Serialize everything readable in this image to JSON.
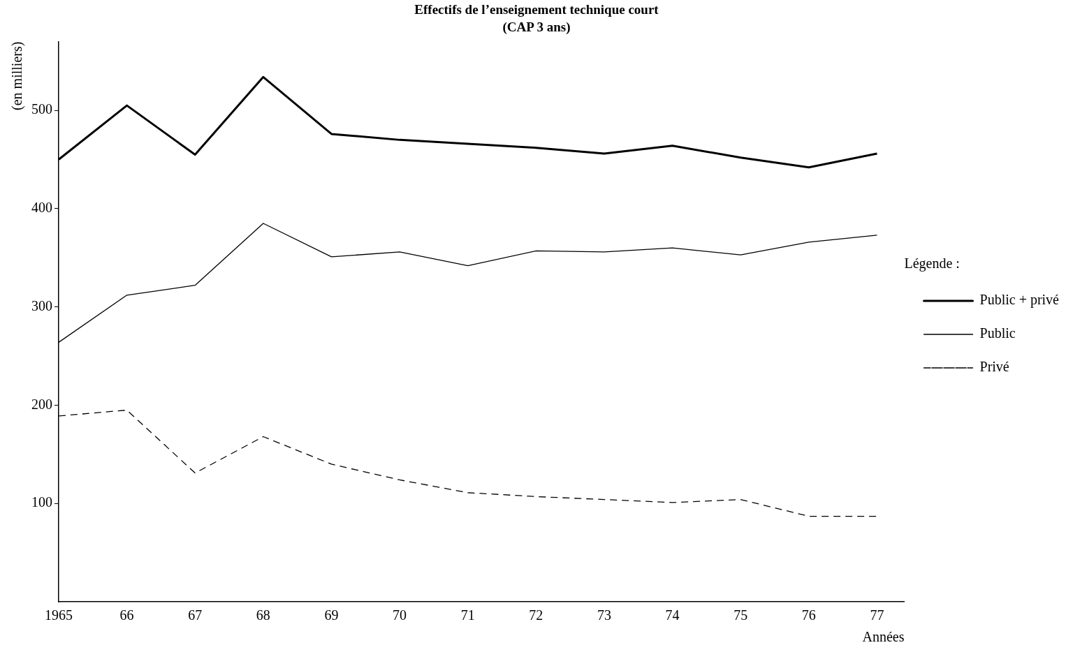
{
  "chart_data": {
    "type": "line",
    "title": "Effectifs de l’enseignement technique court",
    "subtitle": "(CAP 3 ans)",
    "xlabel": "Années",
    "ylabel": "(en milliers)",
    "legend_title": "Légende :",
    "x": [
      1965,
      1966,
      1967,
      1968,
      1969,
      1970,
      1971,
      1972,
      1973,
      1974,
      1975,
      1976,
      1977
    ],
    "series": [
      {
        "name": "Public + privé",
        "color": "#000000",
        "line_style": "solid",
        "values": [
          450,
          505,
          455,
          534,
          476,
          470,
          466,
          462,
          456,
          464,
          452,
          442,
          456
        ]
      },
      {
        "name": "Public",
        "color": "#000000",
        "line_style": "solid",
        "values": [
          264,
          312,
          322,
          385,
          351,
          356,
          342,
          357,
          356,
          360,
          353,
          366,
          373
        ]
      },
      {
        "name": "Privé",
        "color": "#000000",
        "line_style": "dashed",
        "values": [
          189,
          195,
          131,
          168,
          140,
          124,
          111,
          107,
          104,
          101,
          104,
          87,
          87
        ]
      }
    ],
    "xlim": [
      1965,
      1977.4
    ],
    "xticks": [
      1965,
      {
        "value": 1966,
        "label": "66"
      },
      {
        "value": 1967,
        "label": "67"
      },
      {
        "value": 1968,
        "label": "68"
      },
      {
        "value": 1969,
        "label": "69"
      },
      {
        "value": 1970,
        "label": "70"
      },
      {
        "value": 1971,
        "label": "71"
      },
      {
        "value": 1972,
        "label": "72"
      },
      {
        "value": 1973,
        "label": "73"
      },
      {
        "value": 1974,
        "label": "74"
      },
      {
        "value": 1975,
        "label": "75"
      },
      {
        "value": 1976,
        "label": "76"
      },
      {
        "value": 1977,
        "label": "77"
      }
    ],
    "ylim": [
      0,
      570
    ],
    "yticks": [
      100,
      200,
      300,
      400,
      500
    ],
    "grid": false,
    "legend": "right",
    "marker": "none"
  }
}
